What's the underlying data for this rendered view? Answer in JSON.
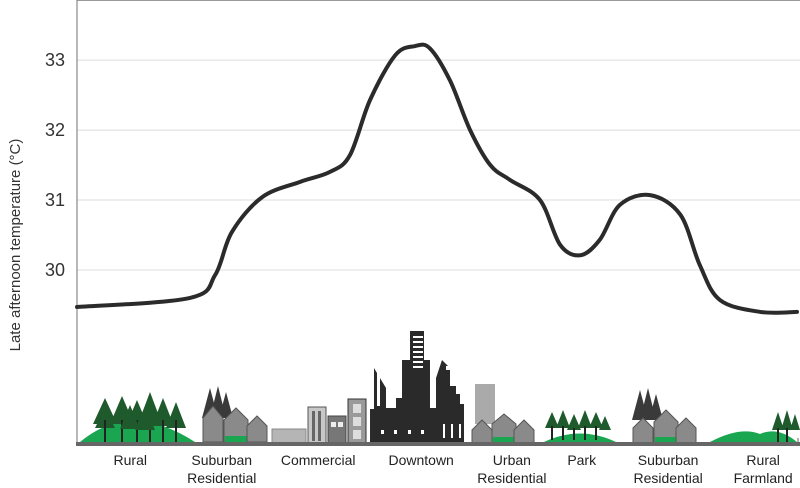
{
  "chart_data": {
    "type": "line",
    "title": "",
    "xlabel": "",
    "ylabel": "Late afternoon temperature (°C)",
    "ylim": [
      27.54,
      33.86
    ],
    "xlim": [
      0,
      100
    ],
    "grid": true,
    "yticks": [
      "30",
      "31",
      "32",
      "33"
    ],
    "ytick_values": [
      30,
      31,
      32,
      33
    ],
    "zones": [
      {
        "lines": [
          "Rural"
        ],
        "center": 7.4
      },
      {
        "lines": [
          "Suburban",
          "Residential"
        ],
        "center": 20.1
      },
      {
        "lines": [
          "Commercial"
        ],
        "center": 33.5
      },
      {
        "lines": [
          "Downtown"
        ],
        "center": 47.8
      },
      {
        "lines": [
          "Urban",
          "Residential"
        ],
        "center": 60.4
      },
      {
        "lines": [
          "Park"
        ],
        "center": 70.1
      },
      {
        "lines": [
          "Suburban",
          "Residential"
        ],
        "center": 82.1
      },
      {
        "lines": [
          "Rural",
          "Farmland"
        ],
        "center": 95.3
      }
    ],
    "series": [
      {
        "name": "Temperature",
        "color": "#2b2b2b",
        "x": [
          0,
          15.7,
          19.2,
          21.5,
          25.7,
          31,
          35.1,
          37.9,
          40.7,
          44.2,
          46.9,
          49,
          51.8,
          54.6,
          57.4,
          60.1,
          64.3,
          67.1,
          69.9,
          72.6,
          75.4,
          79.6,
          83.8,
          86.5,
          89.3,
          94.9,
          100
        ],
        "y": [
          29.47,
          29.6,
          29.93,
          30.54,
          31.04,
          31.26,
          31.4,
          31.64,
          32.43,
          33.07,
          33.2,
          33.17,
          32.71,
          32.0,
          31.5,
          31.29,
          31.0,
          30.36,
          30.21,
          30.43,
          30.93,
          31.07,
          30.79,
          30.07,
          29.57,
          29.4,
          29.4
        ]
      }
    ]
  }
}
